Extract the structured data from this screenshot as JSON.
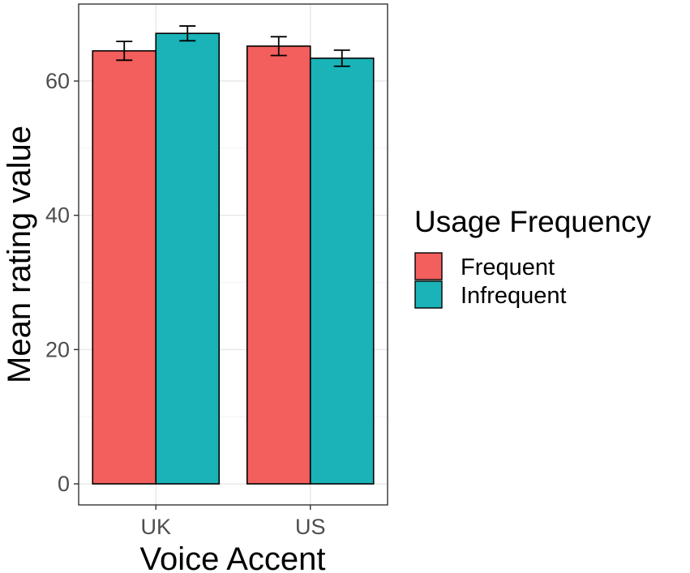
{
  "chart_data": {
    "type": "bar",
    "xlabel": "Voice Accent",
    "ylabel": "Mean rating value",
    "categories": [
      "UK",
      "US"
    ],
    "ylim": [
      0,
      69
    ],
    "yticks": [
      0,
      20,
      40,
      60
    ],
    "grid": true,
    "legend": {
      "title": "Usage Frequency",
      "position": "right"
    },
    "series": [
      {
        "name": "Frequent",
        "color": "#F25F5C",
        "values": [
          64.5,
          65.2
        ],
        "error_low": [
          63.1,
          63.8
        ],
        "error_high": [
          65.9,
          66.6
        ]
      },
      {
        "name": "Infrequent",
        "color": "#19B3B8",
        "values": [
          67.1,
          63.4
        ],
        "error_low": [
          66.0,
          62.2
        ],
        "error_high": [
          68.2,
          64.6
        ]
      }
    ]
  }
}
